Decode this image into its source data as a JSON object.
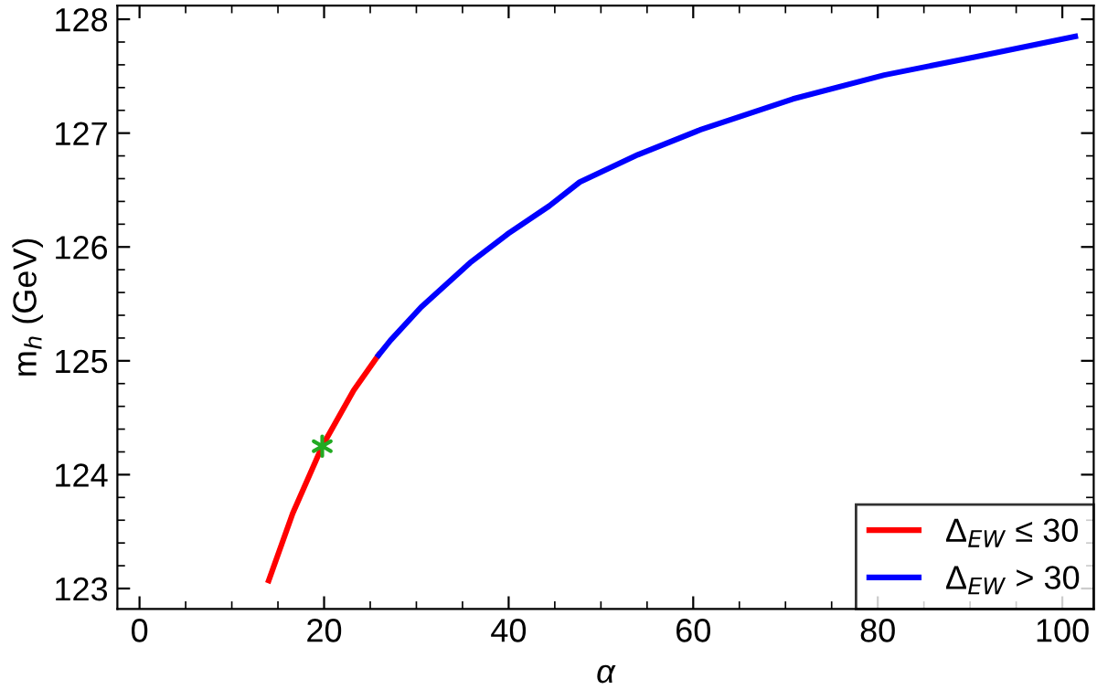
{
  "chart_data": {
    "type": "line",
    "xlabel": "α",
    "ylabel": "m$_{h}$ (GeV)",
    "xlim": [
      -2.4,
      103.4
    ],
    "ylim": [
      122.82,
      128.12
    ],
    "xticks": [
      0,
      20,
      40,
      60,
      80,
      100
    ],
    "yticks": [
      123,
      124,
      125,
      126,
      127,
      128
    ],
    "grid": false,
    "legend": "bottom right",
    "series": [
      {
        "name": "Δ$_{EW}$ ≤ 30",
        "color": "#ff0000",
        "x": [
          14.0,
          16.6,
          19.8,
          23.2,
          25.9
        ],
        "values": [
          123.07,
          123.66,
          124.25,
          124.74,
          125.05
        ]
      },
      {
        "name": "Δ$_{EW}$ > 30",
        "color": "#0000ff",
        "x": [
          25.9,
          27.2,
          30.5,
          35.8,
          40.0,
          44.4,
          47.7,
          54.0,
          60.8,
          70.8,
          80.7,
          90.6,
          101.4
        ],
        "values": [
          125.05,
          125.18,
          125.47,
          125.86,
          126.12,
          126.36,
          126.57,
          126.81,
          127.03,
          127.3,
          127.51,
          127.67,
          127.85
        ]
      },
      {
        "type": "scatter",
        "marker": "cross",
        "color": "#22aa22",
        "x": [
          19.8
        ],
        "values": [
          124.25
        ]
      }
    ]
  }
}
